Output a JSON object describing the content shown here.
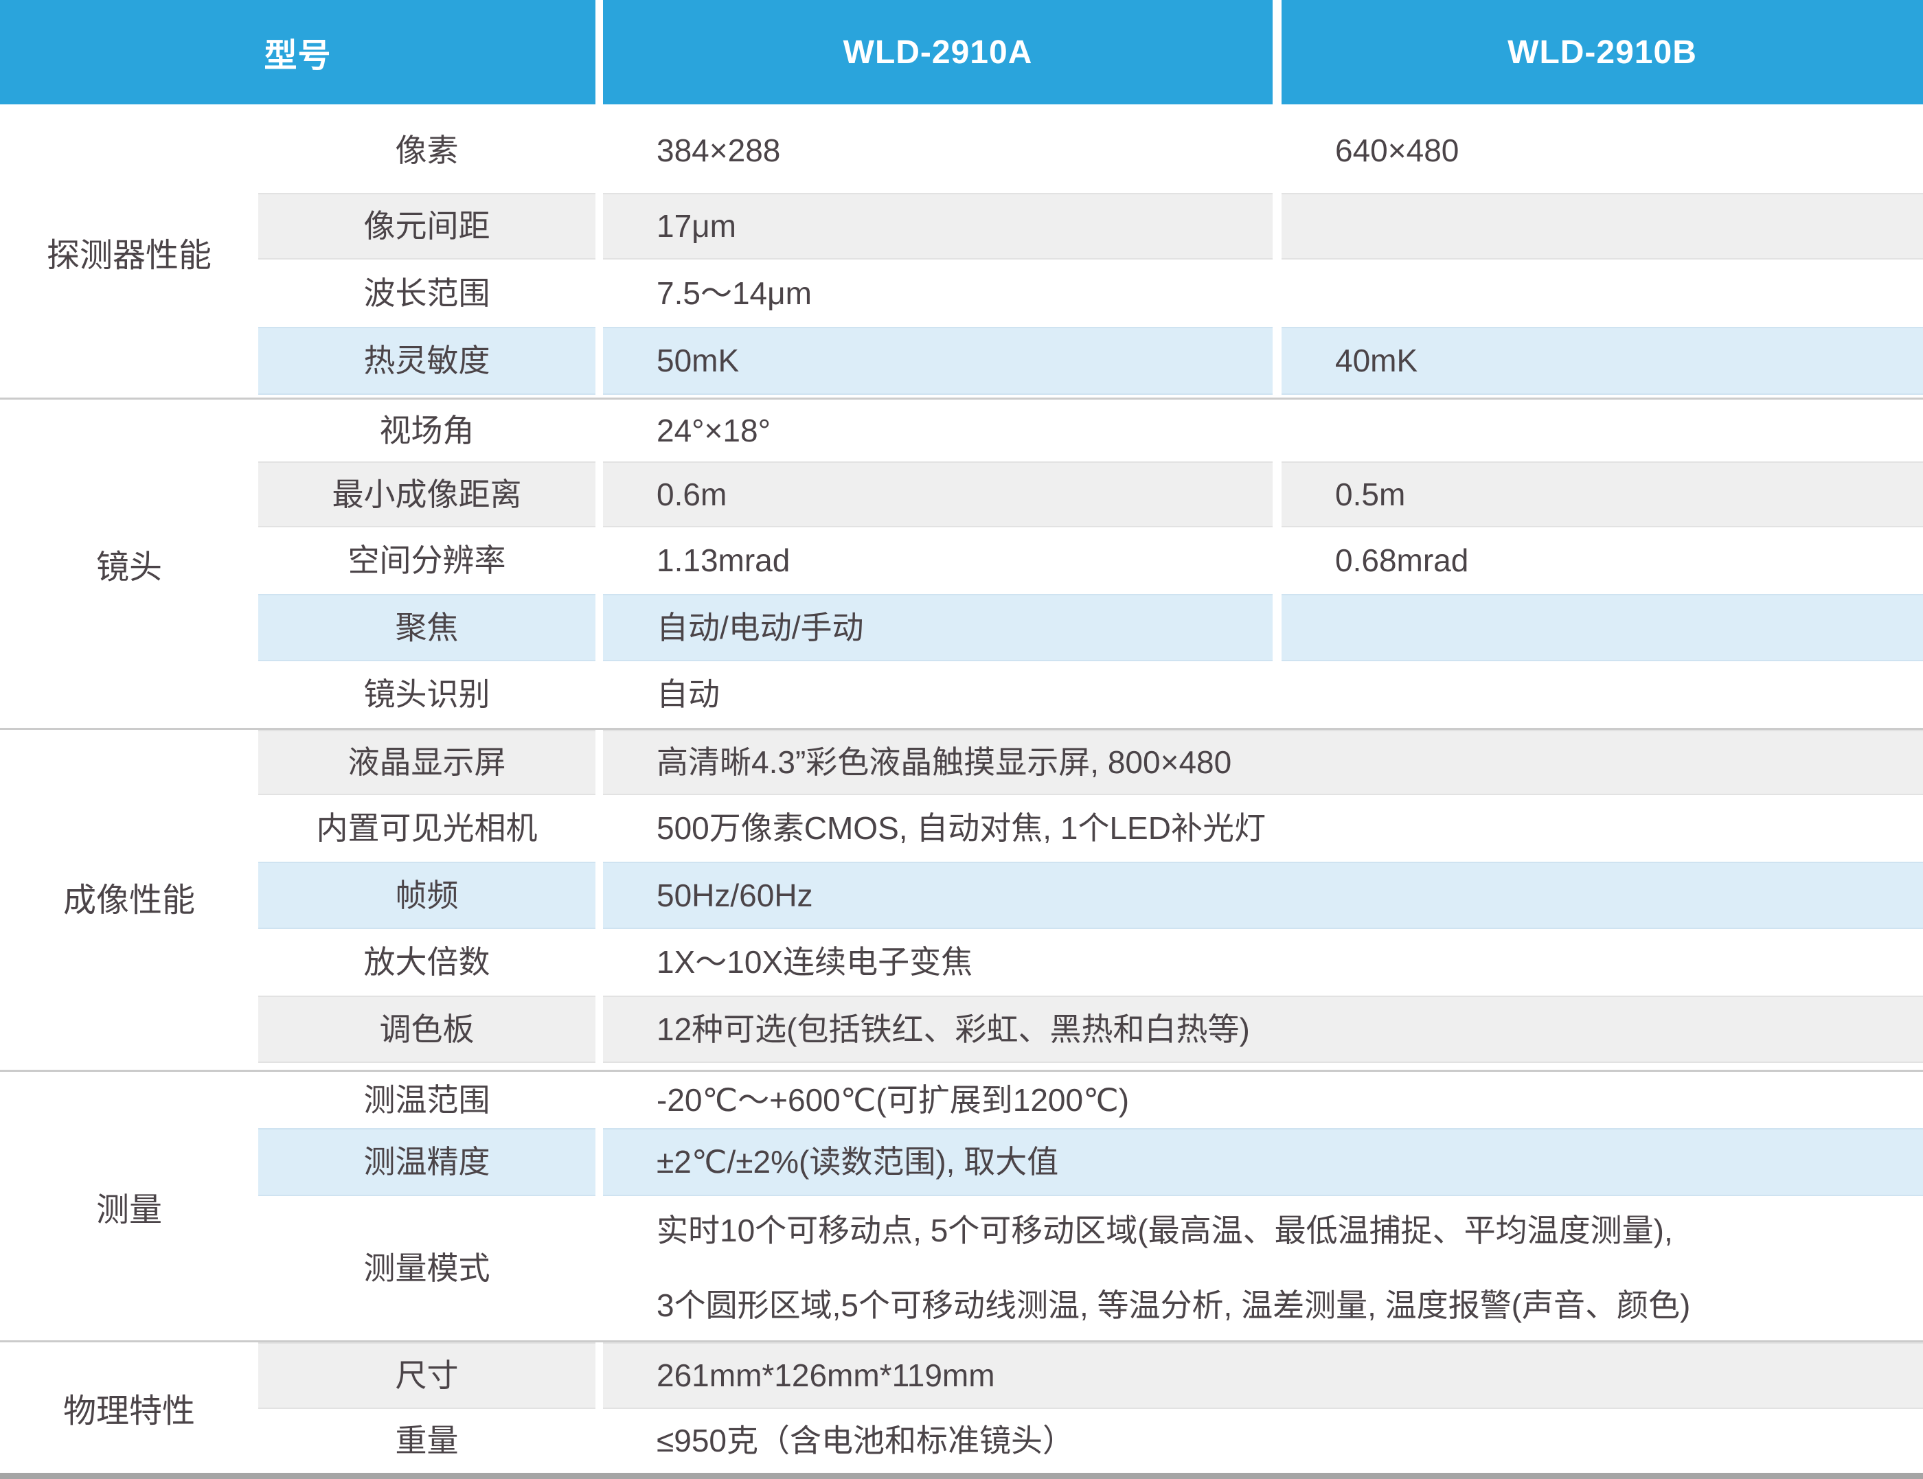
{
  "colors": {
    "header_blue": "#2aa4dc",
    "row_gray": "#efefef",
    "row_blue": "#dcedf8",
    "text": "#4b4448",
    "bottom_bar": "#a5a5a5"
  },
  "header": {
    "model_label": "型号",
    "model_a": "WLD-2910A",
    "model_b": "WLD-2910B"
  },
  "sections": [
    {
      "category": "探测器性能",
      "rows": [
        {
          "param": "像素",
          "value_a": "384×288",
          "value_b": "640×480"
        },
        {
          "param": "像元间距",
          "value_a": "17μm",
          "value_b": ""
        },
        {
          "param": "波长范围",
          "value_a": "7.5〜14μm",
          "value_b": ""
        },
        {
          "param": "热灵敏度",
          "value_a": "50mK",
          "value_b": "40mK"
        }
      ]
    },
    {
      "category": "镜头",
      "rows": [
        {
          "param": "视场角",
          "value_a": "24°×18°",
          "value_b": ""
        },
        {
          "param": "最小成像距离",
          "value_a": "0.6m",
          "value_b": "0.5m"
        },
        {
          "param": "空间分辨率",
          "value_a": "1.13mrad",
          "value_b": "0.68mrad"
        },
        {
          "param": "聚焦",
          "value_a": "自动/电动/手动",
          "value_b": ""
        },
        {
          "param": "镜头识别",
          "value_a": "自动",
          "value_b": ""
        }
      ]
    },
    {
      "category": "成像性能",
      "rows": [
        {
          "param": "液晶显示屏",
          "value": "高清晰4.3”彩色液晶触摸显示屏, 800×480"
        },
        {
          "param": "内置可见光相机",
          "value": "500万像素CMOS, 自动对焦, 1个LED补光灯"
        },
        {
          "param": "帧频",
          "value": "50Hz/60Hz"
        },
        {
          "param": "放大倍数",
          "value": "1X〜10X连续电子变焦"
        },
        {
          "param": "调色板",
          "value": "12种可选(包括铁红、彩虹、黑热和白热等)"
        }
      ]
    },
    {
      "category": "测量",
      "rows": [
        {
          "param": "测温范围",
          "value": "-20℃〜+600℃(可扩展到1200℃)"
        },
        {
          "param": "测温精度",
          "value": "±2℃/±2%(读数范围), 取大值"
        },
        {
          "param": "测量模式",
          "value_lines": [
            "实时10个可移动点, 5个可移动区域(最高温、最低温捕捉、平均温度测量),",
            "3个圆形区域,5个可移动线测温, 等温分析, 温差测量, 温度报警(声音、颜色)"
          ]
        }
      ]
    },
    {
      "category": "物理特性",
      "rows": [
        {
          "param": "尺寸",
          "value": "261mm*126mm*119mm"
        },
        {
          "param": "重量",
          "value": "≤950克（含电池和标准镜头）"
        }
      ]
    }
  ]
}
